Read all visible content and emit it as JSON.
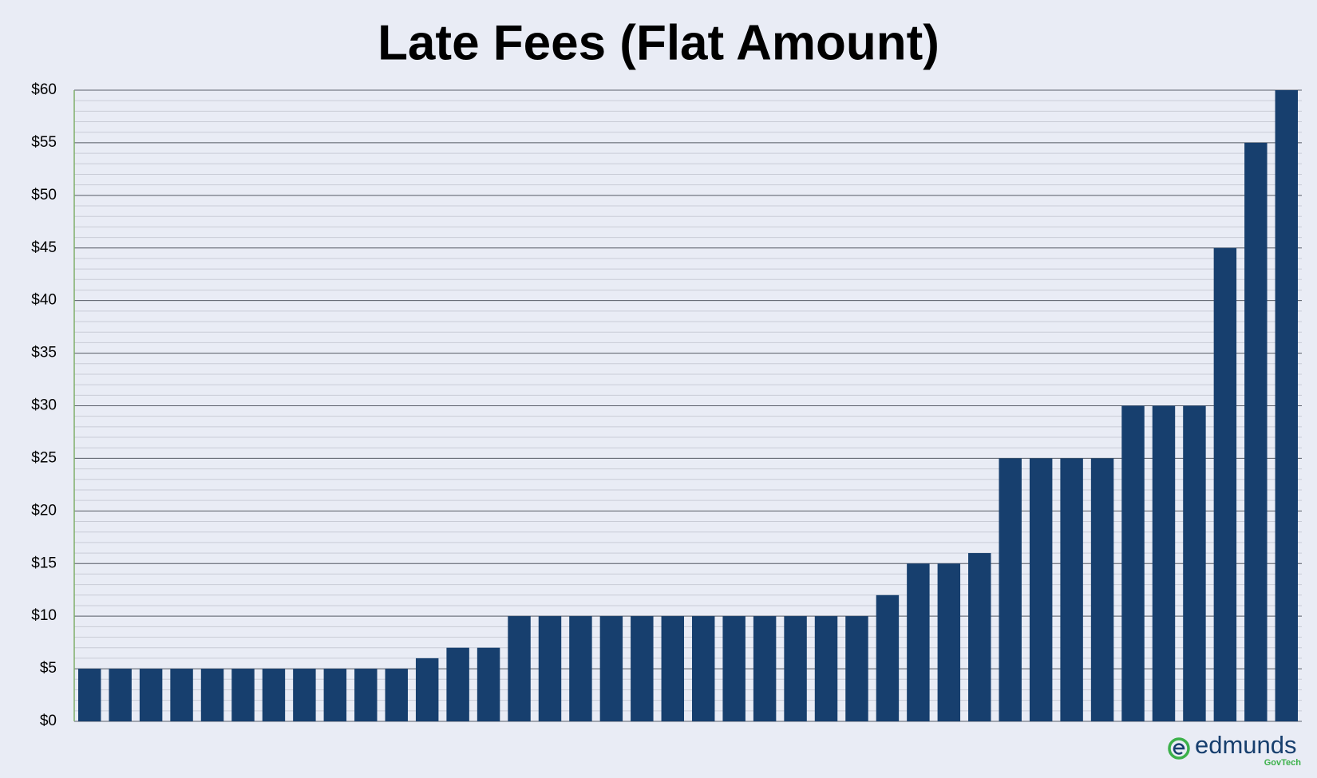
{
  "chart_data": {
    "type": "bar",
    "title": "Late Fees (Flat Amount)",
    "values": [
      5,
      5,
      5,
      5,
      5,
      5,
      5,
      5,
      5,
      5,
      5,
      6,
      7,
      7,
      10,
      10,
      10,
      10,
      10,
      10,
      10,
      10,
      10,
      10,
      10,
      10,
      12,
      15,
      15,
      16,
      25,
      25,
      25,
      25,
      30,
      30,
      30,
      45,
      55,
      60
    ],
    "color": "#173f6e",
    "ylim": [
      0,
      60
    ],
    "yticks": [
      {
        "value": 0,
        "label": "$0"
      },
      {
        "value": 5,
        "label": "$5"
      },
      {
        "value": 10,
        "label": "$10"
      },
      {
        "value": 15,
        "label": "$15"
      },
      {
        "value": 20,
        "label": "$20"
      },
      {
        "value": 25,
        "label": "$25"
      },
      {
        "value": 30,
        "label": "$30"
      },
      {
        "value": 35,
        "label": "$35"
      },
      {
        "value": 40,
        "label": "$40"
      },
      {
        "value": 45,
        "label": "$45"
      },
      {
        "value": 50,
        "label": "$50"
      },
      {
        "value": 55,
        "label": "$55"
      },
      {
        "value": 60,
        "label": "$60"
      }
    ],
    "grid": true,
    "minor_grid": true
  },
  "logo": {
    "name": "edmunds",
    "tagline": "GovTech"
  }
}
